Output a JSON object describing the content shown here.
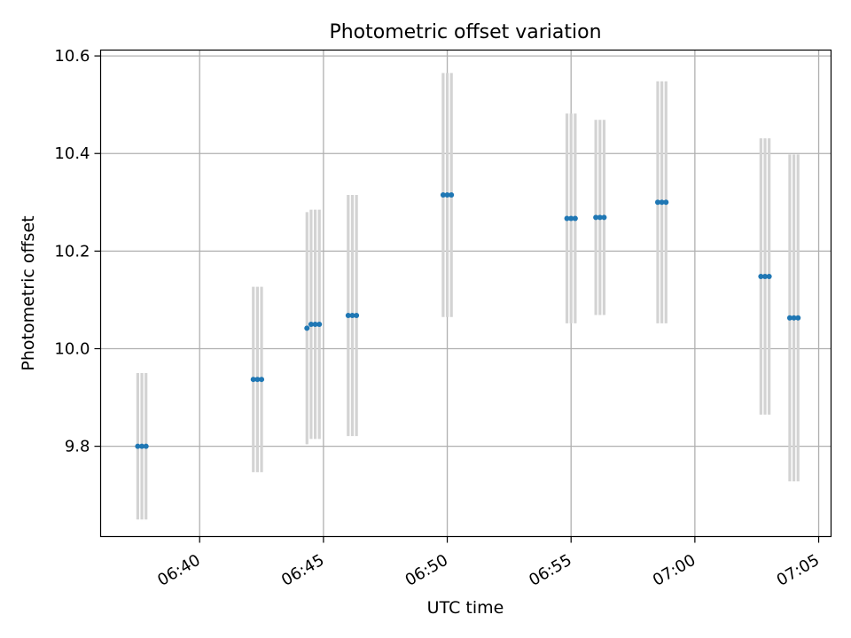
{
  "chart_data": {
    "type": "scatter",
    "title": "Photometric offset variation",
    "xlabel": "UTC time",
    "ylabel": "Photometric offset",
    "xlim": [
      "06:36:00",
      "07:05:30"
    ],
    "ylim": [
      9.615,
      10.612
    ],
    "xticks": [
      "06:40",
      "06:45",
      "06:50",
      "06:55",
      "07:00",
      "07:05"
    ],
    "yticks": [
      9.8,
      10.0,
      10.2,
      10.4,
      10.6
    ],
    "grid": true,
    "colors": {
      "marker": "#1f77b4",
      "errorbar": "#d3d3d3",
      "grid": "#b0b0b0"
    },
    "points": [
      {
        "x": "06:37:30",
        "y": 9.8,
        "err": 0.15
      },
      {
        "x": "06:37:40",
        "y": 9.8,
        "err": 0.15
      },
      {
        "x": "06:37:50",
        "y": 9.8,
        "err": 0.15
      },
      {
        "x": "06:42:10",
        "y": 9.937,
        "err": 0.19
      },
      {
        "x": "06:42:20",
        "y": 9.937,
        "err": 0.19
      },
      {
        "x": "06:42:30",
        "y": 9.937,
        "err": 0.19
      },
      {
        "x": "06:44:20",
        "y": 10.042,
        "err": 0.238
      },
      {
        "x": "06:44:30",
        "y": 10.05,
        "err": 0.235
      },
      {
        "x": "06:44:40",
        "y": 10.05,
        "err": 0.235
      },
      {
        "x": "06:44:50",
        "y": 10.05,
        "err": 0.235
      },
      {
        "x": "06:46:00",
        "y": 10.068,
        "err": 0.247
      },
      {
        "x": "06:46:10",
        "y": 10.068,
        "err": 0.247
      },
      {
        "x": "06:46:20",
        "y": 10.068,
        "err": 0.247
      },
      {
        "x": "06:49:50",
        "y": 10.315,
        "err": 0.25
      },
      {
        "x": "06:50:00",
        "y": 10.315,
        "err": 0.25
      },
      {
        "x": "06:50:10",
        "y": 10.315,
        "err": 0.25
      },
      {
        "x": "06:54:50",
        "y": 10.267,
        "err": 0.215
      },
      {
        "x": "06:55:00",
        "y": 10.267,
        "err": 0.215
      },
      {
        "x": "06:55:10",
        "y": 10.267,
        "err": 0.215
      },
      {
        "x": "06:56:00",
        "y": 10.269,
        "err": 0.2
      },
      {
        "x": "06:56:10",
        "y": 10.269,
        "err": 0.2
      },
      {
        "x": "06:56:20",
        "y": 10.269,
        "err": 0.2
      },
      {
        "x": "06:58:30",
        "y": 10.3,
        "err": 0.248
      },
      {
        "x": "06:58:40",
        "y": 10.3,
        "err": 0.248
      },
      {
        "x": "06:58:50",
        "y": 10.3,
        "err": 0.248
      },
      {
        "x": "07:02:40",
        "y": 10.148,
        "err": 0.283
      },
      {
        "x": "07:02:50",
        "y": 10.148,
        "err": 0.283
      },
      {
        "x": "07:03:00",
        "y": 10.148,
        "err": 0.283
      },
      {
        "x": "07:03:50",
        "y": 10.063,
        "err": 0.335
      },
      {
        "x": "07:04:00",
        "y": 10.063,
        "err": 0.335
      },
      {
        "x": "07:04:10",
        "y": 10.063,
        "err": 0.335
      }
    ]
  }
}
